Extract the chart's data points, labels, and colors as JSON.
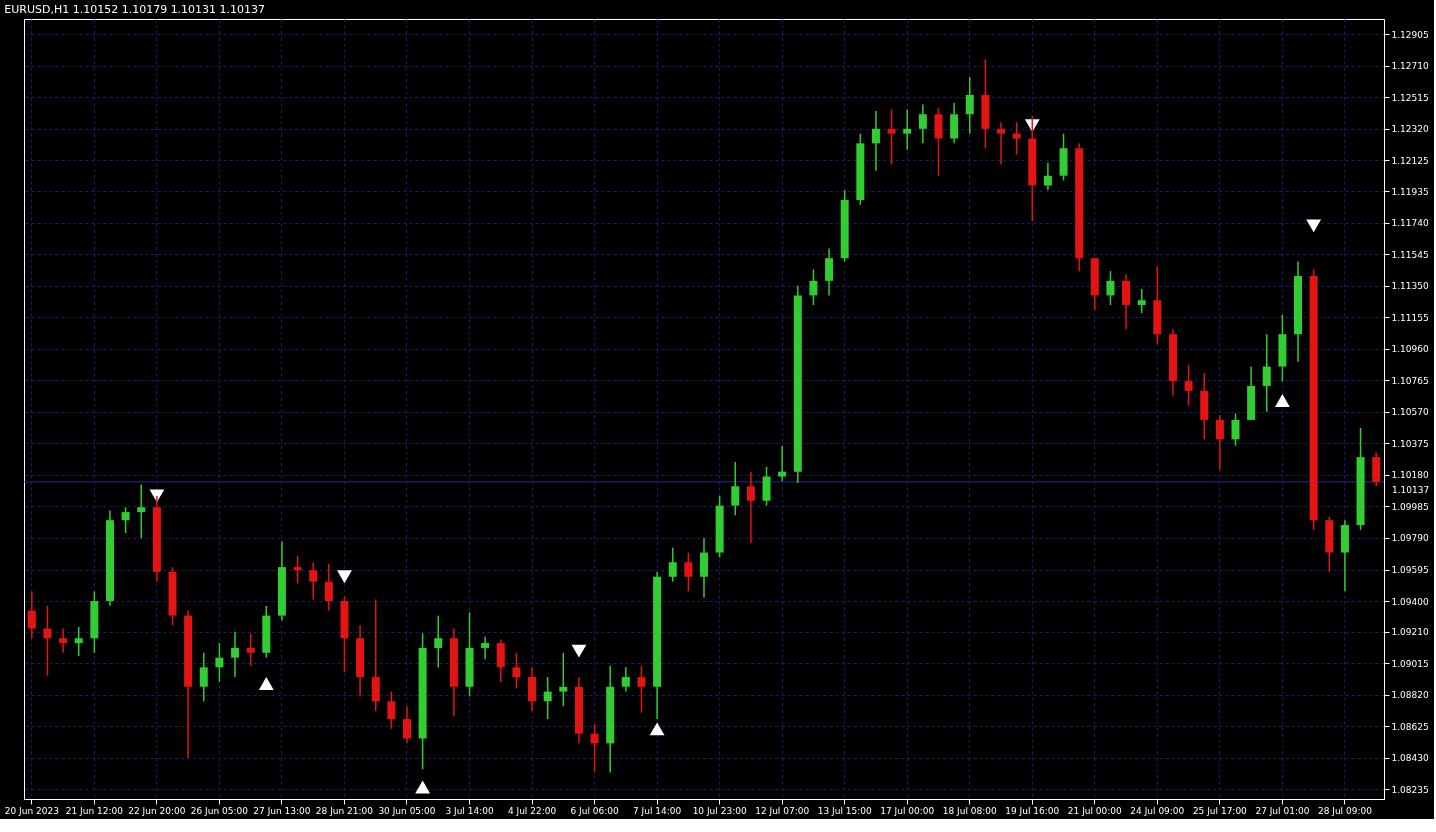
{
  "chart_data": {
    "type": "candlestick",
    "title": "EURUSD,H1  1.10152 1.10179 1.10131 1.10137",
    "categories": [
      "20 Jun 2023",
      null,
      null,
      null,
      "21 Jun 12:00",
      null,
      null,
      null,
      "22 Jun 20:00",
      null,
      null,
      null,
      "26 Jun 05:00",
      null,
      null,
      null,
      "27 Jun 13:00",
      null,
      null,
      null,
      "28 Jun 21:00",
      null,
      null,
      null,
      "30 Jun 05:00",
      null,
      null,
      null,
      "3 Jul 14:00",
      null,
      null,
      null,
      "4 Jul 22:00",
      null,
      null,
      null,
      "6 Jul 06:00",
      null,
      null,
      null,
      "7 Jul 14:00",
      null,
      null,
      null,
      "10 Jul 23:00",
      null,
      null,
      null,
      "12 Jul 07:00",
      null,
      null,
      null,
      "13 Jul 15:00",
      null,
      null,
      null,
      "17 Jul 00:00",
      null,
      null,
      null,
      "18 Jul 08:00",
      null,
      null,
      null,
      "19 Jul 16:00",
      null,
      null,
      null,
      "21 Jul 00:00",
      null,
      null,
      null,
      "24 Jul 09:00",
      null,
      null,
      null,
      "25 Jul 17:00",
      null,
      null,
      null,
      "27 Jul 01:00",
      null,
      null,
      null,
      "28 Jul 09:00",
      null,
      null
    ],
    "ohlc": [
      [
        1.0934,
        1.0946,
        1.0917,
        1.0923
      ],
      [
        1.0923,
        1.0937,
        1.0894,
        1.0917
      ],
      [
        1.0917,
        1.0923,
        1.0908,
        1.0914
      ],
      [
        1.0914,
        1.0924,
        1.0906,
        1.0917
      ],
      [
        1.0917,
        1.0946,
        1.0908,
        1.094
      ],
      [
        1.094,
        1.0996,
        1.0937,
        1.099
      ],
      [
        1.099,
        1.0998,
        1.0982,
        1.0995
      ],
      [
        1.0995,
        1.1012,
        1.0979,
        1.0998
      ],
      [
        1.0998,
        1.1005,
        1.0952,
        1.0958
      ],
      [
        1.0958,
        1.0961,
        1.0925,
        1.0931
      ],
      [
        1.0931,
        1.0934,
        1.0843,
        1.0887
      ],
      [
        1.0887,
        1.0908,
        1.0878,
        1.0899
      ],
      [
        1.0899,
        1.0914,
        1.089,
        1.0905
      ],
      [
        1.0905,
        1.0921,
        1.0893,
        1.0911
      ],
      [
        1.0911,
        1.092,
        1.09,
        1.0908
      ],
      [
        1.0908,
        1.0937,
        1.0905,
        1.0931
      ],
      [
        1.0931,
        1.0977,
        1.0928,
        1.0961
      ],
      [
        1.0961,
        1.0968,
        1.0951,
        1.0959
      ],
      [
        1.0959,
        1.0964,
        1.0941,
        1.0952
      ],
      [
        1.0952,
        1.0963,
        1.0934,
        1.094
      ],
      [
        1.094,
        1.0943,
        1.0896,
        1.0917
      ],
      [
        1.0917,
        1.0925,
        1.0881,
        1.0893
      ],
      [
        1.0893,
        1.0941,
        1.0872,
        1.0878
      ],
      [
        1.0878,
        1.0884,
        1.0861,
        1.0867
      ],
      [
        1.0867,
        1.0875,
        1.0852,
        1.0855
      ],
      [
        1.0855,
        1.092,
        1.0836,
        1.0911
      ],
      [
        1.0911,
        1.0931,
        1.0899,
        1.0917
      ],
      [
        1.0917,
        1.0923,
        1.0869,
        1.0887
      ],
      [
        1.0887,
        1.0933,
        1.0881,
        1.0911
      ],
      [
        1.0911,
        1.0918,
        1.0904,
        1.0914
      ],
      [
        1.0914,
        1.0916,
        1.089,
        1.0899
      ],
      [
        1.0899,
        1.0908,
        1.0886,
        1.0893
      ],
      [
        1.0893,
        1.0899,
        1.0872,
        1.0878
      ],
      [
        1.0878,
        1.0893,
        1.0867,
        1.0884
      ],
      [
        1.0884,
        1.0908,
        1.0875,
        1.0887
      ],
      [
        1.0887,
        1.0893,
        1.0852,
        1.0858
      ],
      [
        1.0858,
        1.0864,
        1.0834,
        1.0852
      ],
      [
        1.0852,
        1.09,
        1.0834,
        1.0887
      ],
      [
        1.0887,
        1.0899,
        1.0884,
        1.0893
      ],
      [
        1.0893,
        1.09,
        1.0871,
        1.0887
      ],
      [
        1.0887,
        1.0958,
        1.0867,
        1.0955
      ],
      [
        1.0955,
        1.0973,
        1.0952,
        1.0964
      ],
      [
        1.0964,
        1.097,
        1.0946,
        1.0955
      ],
      [
        1.0955,
        1.0979,
        1.0942,
        1.097
      ],
      [
        1.097,
        1.1005,
        1.0967,
        1.0999
      ],
      [
        1.0999,
        1.1026,
        1.0993,
        1.1011
      ],
      [
        1.1011,
        1.102,
        1.0976,
        1.1002
      ],
      [
        1.1002,
        1.1023,
        1.0999,
        1.1017
      ],
      [
        1.1017,
        1.1036,
        1.1014,
        1.102
      ],
      [
        1.102,
        1.1135,
        1.1013,
        1.1129
      ],
      [
        1.1129,
        1.1145,
        1.1123,
        1.1138
      ],
      [
        1.1138,
        1.1158,
        1.1129,
        1.1152
      ],
      [
        1.1152,
        1.1194,
        1.115,
        1.1188
      ],
      [
        1.1188,
        1.1229,
        1.1185,
        1.1223
      ],
      [
        1.1223,
        1.1243,
        1.1206,
        1.1232
      ],
      [
        1.1232,
        1.1244,
        1.121,
        1.1229
      ],
      [
        1.1229,
        1.1244,
        1.1219,
        1.1232
      ],
      [
        1.1232,
        1.1247,
        1.1223,
        1.1241
      ],
      [
        1.1241,
        1.1245,
        1.1203,
        1.1226
      ],
      [
        1.1226,
        1.1248,
        1.1223,
        1.1241
      ],
      [
        1.1241,
        1.1264,
        1.1229,
        1.1253
      ],
      [
        1.1253,
        1.1275,
        1.122,
        1.1232
      ],
      [
        1.1232,
        1.1236,
        1.121,
        1.1229
      ],
      [
        1.1229,
        1.1236,
        1.1216,
        1.1226
      ],
      [
        1.1226,
        1.124,
        1.1175,
        1.1197
      ],
      [
        1.1197,
        1.1211,
        1.1194,
        1.1203
      ],
      [
        1.1203,
        1.1229,
        1.12,
        1.122
      ],
      [
        1.122,
        1.1223,
        1.1144,
        1.1152
      ],
      [
        1.1152,
        1.1152,
        1.112,
        1.1129
      ],
      [
        1.1129,
        1.1144,
        1.1123,
        1.1138
      ],
      [
        1.1138,
        1.1142,
        1.1108,
        1.1123
      ],
      [
        1.1123,
        1.1133,
        1.1118,
        1.1126
      ],
      [
        1.1126,
        1.1147,
        1.1099,
        1.1105
      ],
      [
        1.1105,
        1.1108,
        1.1067,
        1.1076
      ],
      [
        1.1076,
        1.1086,
        1.1061,
        1.107
      ],
      [
        1.107,
        1.1081,
        1.104,
        1.1052
      ],
      [
        1.1052,
        1.1055,
        1.1021,
        1.104
      ],
      [
        1.104,
        1.1056,
        1.1036,
        1.1052
      ],
      [
        1.1052,
        1.1085,
        1.1052,
        1.1073
      ],
      [
        1.1073,
        1.1105,
        1.1057,
        1.1085
      ],
      [
        1.1085,
        1.1117,
        1.1076,
        1.1105
      ],
      [
        1.1105,
        1.115,
        1.1088,
        1.1141
      ],
      [
        1.1141,
        1.1145,
        1.0984,
        1.099
      ],
      [
        1.099,
        1.0992,
        1.0958,
        1.097
      ],
      [
        1.097,
        1.099,
        1.0946,
        1.0987
      ],
      [
        1.0987,
        1.1047,
        1.0984,
        1.1029
      ],
      [
        1.1029,
        1.1032,
        1.1011,
        1.10137
      ]
    ],
    "colors": [
      "#e41414",
      "#e41414",
      "#e41414",
      "#32cd32",
      "#32cd32",
      "#32cd32",
      "#32cd32",
      "#32cd32",
      "#e41414",
      "#e41414",
      "#e41414",
      "#32cd32",
      "#32cd32",
      "#32cd32",
      "#e41414",
      "#32cd32",
      "#32cd32",
      "#e41414",
      "#e41414",
      "#e41414",
      "#e41414",
      "#e41414",
      "#e41414",
      "#e41414",
      "#e41414",
      "#32cd32",
      "#32cd32",
      "#e41414",
      "#32cd32",
      "#32cd32",
      "#e41414",
      "#e41414",
      "#e41414",
      "#32cd32",
      "#32cd32",
      "#e41414",
      "#e41414",
      "#32cd32",
      "#32cd32",
      "#e41414",
      "#32cd32",
      "#32cd32",
      "#e41414",
      "#32cd32",
      "#32cd32",
      "#32cd32",
      "#e41414",
      "#32cd32",
      "#32cd32",
      "#32cd32",
      "#32cd32",
      "#32cd32",
      "#32cd32",
      "#32cd32",
      "#32cd32",
      "#e41414",
      "#32cd32",
      "#32cd32",
      "#e41414",
      "#32cd32",
      "#32cd32",
      "#e41414",
      "#e41414",
      "#e41414",
      "#e41414",
      "#32cd32",
      "#32cd32",
      "#e41414",
      "#e41414",
      "#32cd32",
      "#e41414",
      "#32cd32",
      "#e41414",
      "#e41414",
      "#e41414",
      "#e41414",
      "#e41414",
      "#32cd32",
      "#32cd32",
      "#32cd32",
      "#32cd32",
      "#32cd32",
      "#e41414",
      "#e41414",
      "#32cd32",
      "#32cd32",
      "#e41414"
    ],
    "series": [
      {
        "type": "scatter",
        "marker": "triangle-up",
        "color": "#ffffff",
        "values": [
          null,
          null,
          null,
          null,
          null,
          null,
          null,
          null,
          null,
          null,
          null,
          null,
          null,
          null,
          null,
          1.0889,
          null,
          null,
          null,
          null,
          null,
          null,
          null,
          null,
          null,
          1.0825,
          null,
          null,
          null,
          null,
          null,
          null,
          null,
          null,
          null,
          null,
          null,
          null,
          null,
          null,
          1.0861,
          null,
          null,
          null,
          null,
          null,
          null,
          null,
          null,
          null,
          null,
          null,
          null,
          null,
          null,
          null,
          null,
          null,
          null,
          null,
          null,
          null,
          null,
          null,
          null,
          null,
          null,
          null,
          null,
          null,
          null,
          null,
          null,
          null,
          null,
          null,
          null,
          null,
          null,
          null,
          1.1064,
          null,
          null,
          null,
          null,
          null,
          null
        ]
      },
      {
        "type": "scatter",
        "marker": "triangle-down",
        "color": "#ffffff",
        "values": [
          null,
          null,
          null,
          null,
          null,
          null,
          null,
          null,
          1.1005,
          null,
          null,
          null,
          null,
          null,
          null,
          null,
          null,
          null,
          null,
          null,
          1.0955,
          null,
          null,
          null,
          null,
          null,
          null,
          null,
          null,
          null,
          null,
          null,
          null,
          null,
          null,
          1.0909,
          null,
          null,
          null,
          null,
          null,
          null,
          null,
          null,
          null,
          null,
          null,
          null,
          null,
          null,
          null,
          null,
          null,
          null,
          null,
          null,
          null,
          null,
          null,
          null,
          null,
          null,
          null,
          null,
          1.1234,
          null,
          null,
          null,
          null,
          null,
          null,
          null,
          null,
          null,
          null,
          null,
          null,
          null,
          null,
          null,
          null,
          null,
          1.1172,
          null,
          null,
          null,
          null
        ]
      }
    ],
    "ylim": [
      1.08176,
      1.12999
    ],
    "yticks": [
      1.08235,
      {
        "value": 1.0843,
        "label": "1.08430"
      },
      1.08625,
      {
        "value": 1.0882,
        "label": "1.08820"
      },
      1.09015,
      {
        "value": 1.0921,
        "label": "1.09210"
      },
      {
        "value": 1.094,
        "label": "1.09400"
      },
      1.09595,
      {
        "value": 1.0979,
        "label": "1.09790"
      },
      1.09985,
      {
        "value": 1.1018,
        "label": "1.10180"
      },
      1.10375,
      {
        "value": 1.1057,
        "label": "1.10570"
      },
      1.10765,
      {
        "value": 1.1096,
        "label": "1.10960"
      },
      1.11155,
      {
        "value": 1.1135,
        "label": "1.11350"
      },
      1.11545,
      {
        "value": 1.1174,
        "label": "1.11740"
      },
      1.11935,
      1.12125,
      {
        "value": 1.1232,
        "label": "1.12320"
      },
      1.12515,
      {
        "value": 1.1271,
        "label": "1.12710"
      },
      1.12905
    ],
    "ref_lines": [
      {
        "axis": "y",
        "value": 1.10137,
        "label": "1.10137",
        "color": "#2a2a9a"
      }
    ],
    "grid": true
  }
}
